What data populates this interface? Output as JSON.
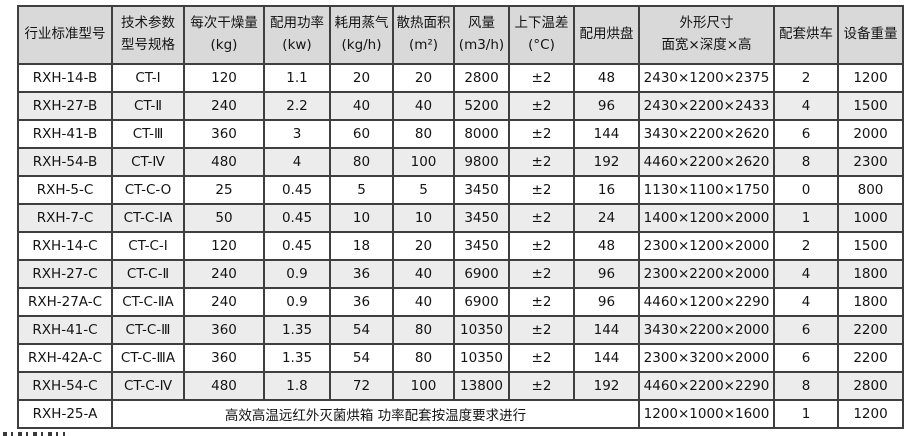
{
  "colors": {
    "border": "#3f3f3f",
    "header_bg": "#d9d9d9",
    "row_alt_bg": "#ececec",
    "row_bg": "#ffffff",
    "text": "#141414"
  },
  "table": {
    "columns": [
      {
        "line1": "行业标准型号",
        "line2": ""
      },
      {
        "line1": "技术参数",
        "line2": "型号规格"
      },
      {
        "line1": "每次干燥量",
        "line2": "(kg)"
      },
      {
        "line1": "配用功率",
        "line2": "(kw)"
      },
      {
        "line1": "耗用蒸气",
        "line2": "(kg/h)"
      },
      {
        "line1": "散热面积",
        "line2": "(m²)"
      },
      {
        "line1": "风量",
        "line2": "(m3/h)"
      },
      {
        "line1": "上下温差",
        "line2": "(°C)"
      },
      {
        "line1": "配用烘盘",
        "line2": ""
      },
      {
        "line1": "外形尺寸",
        "line2": "面宽×深度×高"
      },
      {
        "line1": "配套烘车",
        "line2": ""
      },
      {
        "line1": "设备重量",
        "line2": ""
      }
    ],
    "rows": [
      [
        "RXH-14-B",
        "CT-Ⅰ",
        "120",
        "1.1",
        "20",
        "20",
        "2800",
        "±2",
        "48",
        "2430×1200×2375",
        "2",
        "1200"
      ],
      [
        "RXH-27-B",
        "CT-Ⅱ",
        "240",
        "2.2",
        "40",
        "40",
        "5200",
        "±2",
        "96",
        "2430×2200×2433",
        "4",
        "1500"
      ],
      [
        "RXH-41-B",
        "CT-Ⅲ",
        "360",
        "3",
        "60",
        "80",
        "8000",
        "±2",
        "144",
        "3430×2200×2620",
        "6",
        "2000"
      ],
      [
        "RXH-54-B",
        "CT-Ⅳ",
        "480",
        "4",
        "80",
        "100",
        "9800",
        "±2",
        "192",
        "4460×2200×2620",
        "8",
        "2300"
      ],
      [
        "RXH-5-C",
        "CT-C-O",
        "25",
        "0.45",
        "5",
        "5",
        "3450",
        "±2",
        "16",
        "1130×1100×1750",
        "0",
        "800"
      ],
      [
        "RXH-7-C",
        "CT-C-ⅠA",
        "50",
        "0.45",
        "10",
        "10",
        "3450",
        "±2",
        "24",
        "1400×1200×2000",
        "1",
        "1000"
      ],
      [
        "RXH-14-C",
        "CT-C-Ⅰ",
        "120",
        "0.45",
        "18",
        "20",
        "3450",
        "±2",
        "48",
        "2300×1200×2000",
        "2",
        "1500"
      ],
      [
        "RXH-27-C",
        "CT-C-Ⅱ",
        "240",
        "0.9",
        "36",
        "40",
        "6900",
        "±2",
        "96",
        "2300×2200×2000",
        "4",
        "1800"
      ],
      [
        "RXH-27A-C",
        "CT-C-ⅡA",
        "240",
        "0.9",
        "36",
        "40",
        "6900",
        "±2",
        "96",
        "4460×1200×2290",
        "4",
        "1800"
      ],
      [
        "RXH-41-C",
        "CT-C-Ⅲ",
        "360",
        "1.35",
        "54",
        "80",
        "10350",
        "±2",
        "144",
        "3430×2200×2000",
        "6",
        "2200"
      ],
      [
        "RXH-42A-C",
        "CT-C-ⅢA",
        "360",
        "1.35",
        "54",
        "80",
        "10350",
        "±2",
        "144",
        "2300×3200×2000",
        "6",
        "2200"
      ],
      [
        "RXH-54-C",
        "CT-C-Ⅳ",
        "480",
        "1.8",
        "72",
        "100",
        "13800",
        "±2",
        "192",
        "4460×2200×2290",
        "8",
        "2800"
      ]
    ],
    "merged_row": {
      "model": "RXH-25-A",
      "note": "高效高温远红外灭菌烘箱 功率配套按温度要求进行",
      "dimensions": "1200×1000×1600",
      "carts": "1",
      "weight": "1200"
    }
  }
}
